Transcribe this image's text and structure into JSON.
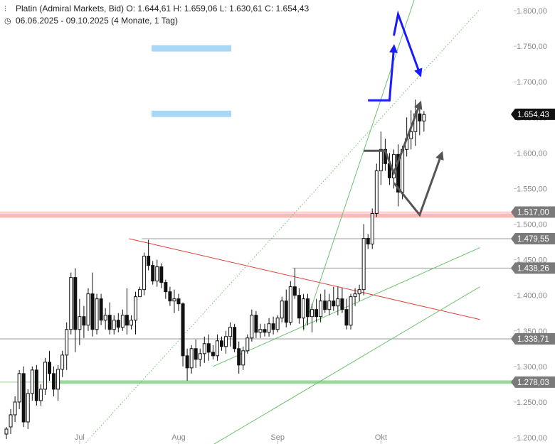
{
  "header": {
    "line1_icon": "candlestick-icon",
    "line1": "Platin (Admiral Markets, Bid)  O: 1.644,61  H: 1.659,06  L: 1.630,61  C: 1.654,43",
    "line2_icon": "clock-icon",
    "line2": "06.06.2025 - 09.10.2025   (4 Monate, 1 Tag)"
  },
  "chart_data": {
    "type": "candlestick",
    "instrument": "Platin (Admiral Markets, Bid)",
    "ohlc_last": {
      "open": "1.644,61",
      "high": "1.659,06",
      "low": "1.630,61",
      "close": "1.654,43"
    },
    "period": "06.06.2025 - 09.10.2025",
    "ylim": [
      1200,
      1800
    ],
    "ytick_values": [
      1200,
      1250,
      1300,
      1350,
      1400,
      1450,
      1500,
      1550,
      1600,
      1650,
      1700,
      1750,
      1800
    ],
    "ytick_labels": [
      "1.200,00",
      "1.250,00",
      "1.300,00",
      "1.350,00",
      "1.400,00",
      "1.450,00",
      "1.500,00",
      "1.550,00",
      "1.600,00",
      "1.650,00",
      "1.700,00",
      "1.750,00",
      "1.800,00"
    ],
    "xtick_labels": [
      {
        "label": "Jul",
        "index": 17
      },
      {
        "label": "Aug",
        "index": 40
      },
      {
        "label": "Sep",
        "index": 63
      },
      {
        "label": "Okt",
        "index": 87
      }
    ],
    "candles": [
      [
        1205,
        1215,
        1198,
        1212
      ],
      [
        1215,
        1240,
        1205,
        1232
      ],
      [
        1232,
        1258,
        1222,
        1250
      ],
      [
        1250,
        1295,
        1240,
        1290
      ],
      [
        1290,
        1300,
        1215,
        1222
      ],
      [
        1222,
        1268,
        1212,
        1262
      ],
      [
        1262,
        1300,
        1252,
        1295
      ],
      [
        1295,
        1302,
        1245,
        1252
      ],
      [
        1252,
        1275,
        1245,
        1268
      ],
      [
        1268,
        1312,
        1260,
        1306
      ],
      [
        1306,
        1322,
        1280,
        1290
      ],
      [
        1290,
        1300,
        1258,
        1268
      ],
      [
        1268,
        1302,
        1252,
        1296
      ],
      [
        1296,
        1322,
        1285,
        1316
      ],
      [
        1316,
        1362,
        1295,
        1352
      ],
      [
        1352,
        1432,
        1345,
        1425
      ],
      [
        1425,
        1438,
        1320,
        1352
      ],
      [
        1352,
        1395,
        1330,
        1370
      ],
      [
        1370,
        1385,
        1340,
        1358
      ],
      [
        1358,
        1410,
        1350,
        1402
      ],
      [
        1402,
        1432,
        1342,
        1352
      ],
      [
        1352,
        1402,
        1345,
        1395
      ],
      [
        1395,
        1402,
        1358,
        1365
      ],
      [
        1365,
        1382,
        1352,
        1372
      ],
      [
        1372,
        1390,
        1345,
        1352
      ],
      [
        1352,
        1372,
        1345,
        1365
      ],
      [
        1365,
        1375,
        1348,
        1355
      ],
      [
        1355,
        1380,
        1350,
        1372
      ],
      [
        1372,
        1410,
        1345,
        1358
      ],
      [
        1358,
        1372,
        1352,
        1365
      ],
      [
        1365,
        1405,
        1345,
        1398
      ],
      [
        1398,
        1412,
        1398,
        1408
      ],
      [
        1408,
        1460,
        1400,
        1455
      ],
      [
        1455,
        1478,
        1435,
        1442
      ],
      [
        1442,
        1448,
        1415,
        1420
      ],
      [
        1420,
        1450,
        1412,
        1440
      ],
      [
        1440,
        1445,
        1410,
        1418
      ],
      [
        1418,
        1422,
        1395,
        1405
      ],
      [
        1405,
        1412,
        1385,
        1392
      ],
      [
        1392,
        1408,
        1375,
        1395
      ],
      [
        1395,
        1402,
        1378,
        1388
      ],
      [
        1388,
        1390,
        1300,
        1315
      ],
      [
        1315,
        1325,
        1280,
        1298
      ],
      [
        1298,
        1330,
        1290,
        1325
      ],
      [
        1325,
        1338,
        1298,
        1310
      ],
      [
        1310,
        1325,
        1300,
        1318
      ],
      [
        1318,
        1342,
        1305,
        1332
      ],
      [
        1332,
        1345,
        1308,
        1320
      ],
      [
        1320,
        1330,
        1310,
        1315
      ],
      [
        1315,
        1345,
        1308,
        1336
      ],
      [
        1336,
        1342,
        1322,
        1328
      ],
      [
        1328,
        1350,
        1318,
        1342
      ],
      [
        1342,
        1362,
        1328,
        1355
      ],
      [
        1355,
        1360,
        1320,
        1325
      ],
      [
        1325,
        1335,
        1290,
        1302
      ],
      [
        1302,
        1328,
        1295,
        1322
      ],
      [
        1322,
        1345,
        1318,
        1340
      ],
      [
        1340,
        1380,
        1335,
        1372
      ],
      [
        1372,
        1378,
        1340,
        1348
      ],
      [
        1348,
        1360,
        1340,
        1352
      ],
      [
        1352,
        1360,
        1342,
        1348
      ],
      [
        1348,
        1368,
        1342,
        1360
      ],
      [
        1360,
        1370,
        1345,
        1352
      ],
      [
        1352,
        1372,
        1348,
        1368
      ],
      [
        1368,
        1398,
        1362,
        1392
      ],
      [
        1392,
        1408,
        1355,
        1362
      ],
      [
        1362,
        1420,
        1358,
        1412
      ],
      [
        1412,
        1438,
        1395,
        1400
      ],
      [
        1400,
        1410,
        1360,
        1368
      ],
      [
        1368,
        1402,
        1352,
        1395
      ],
      [
        1395,
        1402,
        1358,
        1370
      ],
      [
        1370,
        1388,
        1348,
        1380
      ],
      [
        1380,
        1395,
        1362,
        1370
      ],
      [
        1370,
        1402,
        1362,
        1392
      ],
      [
        1392,
        1408,
        1375,
        1380
      ],
      [
        1380,
        1402,
        1372,
        1392
      ],
      [
        1392,
        1412,
        1378,
        1385
      ],
      [
        1385,
        1412,
        1372,
        1395
      ],
      [
        1395,
        1410,
        1375,
        1380
      ],
      [
        1380,
        1395,
        1352,
        1358
      ],
      [
        1358,
        1402,
        1352,
        1398
      ],
      [
        1398,
        1410,
        1385,
        1402
      ],
      [
        1402,
        1415,
        1392,
        1408
      ],
      [
        1408,
        1500,
        1400,
        1480
      ],
      [
        1480,
        1486,
        1465,
        1472
      ],
      [
        1472,
        1522,
        1465,
        1515
      ],
      [
        1515,
        1585,
        1510,
        1575
      ],
      [
        1575,
        1630,
        1555,
        1605
      ],
      [
        1605,
        1620,
        1575,
        1585
      ],
      [
        1585,
        1600,
        1555,
        1565
      ],
      [
        1565,
        1605,
        1550,
        1598
      ],
      [
        1598,
        1612,
        1525,
        1545
      ],
      [
        1545,
        1610,
        1535,
        1605
      ],
      [
        1605,
        1650,
        1595,
        1620
      ],
      [
        1620,
        1660,
        1605,
        1630
      ],
      [
        1630,
        1675,
        1610,
        1655
      ],
      [
        1655,
        1662,
        1625,
        1645
      ],
      [
        1645,
        1659,
        1630,
        1654
      ]
    ],
    "horizontal_lines": [
      {
        "value": 1517.0,
        "label": "1.517,00",
        "color": "#f4a6a0",
        "tag_bg": "#7a7a7a",
        "tag_fg": "#ffffff"
      },
      {
        "value": 1479.55,
        "label": "1.479,55",
        "color": "#999999",
        "tag_bg": "#7a7a7a",
        "tag_fg": "#ffffff"
      },
      {
        "value": 1438.26,
        "label": "1.438,26",
        "color": "#999999",
        "tag_bg": "#7a7a7a",
        "tag_fg": "#ffffff"
      },
      {
        "value": 1338.71,
        "label": "1.338,71",
        "color": "#999999",
        "tag_bg": "#7a7a7a",
        "tag_fg": "#ffffff"
      },
      {
        "value": 1278.03,
        "label": "1.278,03",
        "color": "#8fd38f",
        "tag_bg": "#7a7a7a",
        "tag_fg": "#ffffff"
      }
    ],
    "last_price": {
      "value": 1654.43,
      "label": "1.654,43",
      "tag_bg": "#111111",
      "tag_fg": "#ffffff"
    },
    "resistance_band": {
      "value": 1512,
      "color": "#f4a6a0"
    },
    "support_band": {
      "value": 1278,
      "color": "#8fd38f"
    },
    "trendlines": [
      {
        "kind": "red-downtrend",
        "from": [
          28.5,
          1479.55
        ],
        "to": [
          110,
          1366
        ],
        "color": "#e0403a"
      },
      {
        "kind": "green-uptrend-lower",
        "from": [
          48,
          1300
        ],
        "to": [
          110,
          1467
        ],
        "color": "#6cc26c"
      },
      {
        "kind": "green-uptrend-outer",
        "from": [
          48,
          1190
        ],
        "to": [
          110,
          1412
        ],
        "color": "#6cc26c"
      },
      {
        "kind": "green-steep",
        "from": [
          69,
          1350
        ],
        "to": [
          95,
          1820
        ],
        "color": "#6cc26c"
      },
      {
        "kind": "green-dotted-channel",
        "from": [
          18,
          1190
        ],
        "to": [
          110,
          1802
        ],
        "color": "#6cc26c",
        "dotted": true
      }
    ],
    "zones": [
      {
        "value": 1747,
        "color": "#a8d8f5"
      },
      {
        "value": 1655,
        "color": "#a8d8f5"
      }
    ],
    "scenarios": [
      {
        "color": "#1a1aff",
        "points": [
          [
            84,
            1674
          ],
          [
            89,
            1674
          ],
          [
            90,
            1747
          ]
        ]
      },
      {
        "color": "#1a1aff",
        "points": [
          [
            90,
            1765
          ],
          [
            91,
            1795
          ],
          [
            96,
            1712
          ]
        ]
      },
      {
        "color": "#555555",
        "points": [
          [
            83,
            1603
          ],
          [
            88,
            1603
          ],
          [
            90,
            1572
          ],
          [
            96,
            1668
          ]
        ]
      },
      {
        "color": "#555555",
        "points": [
          [
            90,
            1558
          ],
          [
            96,
            1513
          ],
          [
            101,
            1597
          ]
        ]
      }
    ]
  }
}
